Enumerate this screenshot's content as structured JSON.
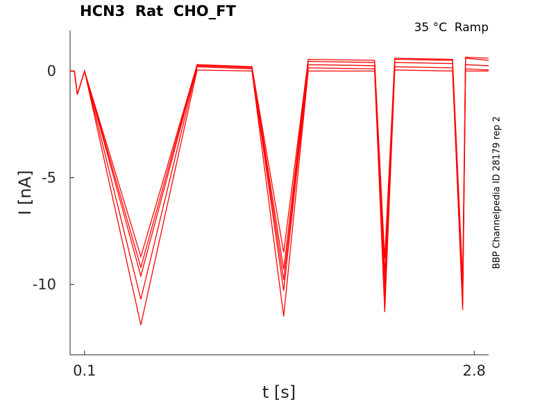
{
  "title": "HCN3  Rat  CHO_FT",
  "annotation": "35 °C  Ramp",
  "side_label": "BBP Channelpedia ID 28179 rep 2",
  "chart_data": {
    "type": "line",
    "xlabel": "t [s]",
    "ylabel": "I [nA]",
    "xlim": [
      0.0,
      2.9
    ],
    "ylim": [
      -13.3,
      1.9
    ],
    "x_ticks": [
      0.1,
      2.8
    ],
    "x_tick_labels": [
      "0.1",
      "2.8"
    ],
    "y_ticks": [
      0,
      -5,
      -10
    ],
    "y_tick_labels": [
      "0",
      "-5",
      "-10"
    ],
    "grid": false,
    "legend": "none",
    "line_color": "#ff0000",
    "series": [
      {
        "x": [
          0.0,
          0.03,
          0.05,
          0.1,
          0.49,
          0.88,
          1.26,
          1.48,
          1.65,
          2.11,
          2.18,
          2.25,
          2.65,
          2.72,
          2.74,
          2.9
        ],
        "y": [
          0.0,
          0.0,
          -1.1,
          0.0,
          -8.7,
          0.3,
          0.2,
          -8.5,
          0.55,
          0.5,
          -8.8,
          0.6,
          0.55,
          -9.8,
          0.65,
          0.6
        ]
      },
      {
        "x": [
          0.0,
          0.03,
          0.05,
          0.1,
          0.49,
          0.88,
          1.26,
          1.48,
          1.65,
          2.11,
          2.18,
          2.25,
          2.65,
          2.72,
          2.74,
          2.9
        ],
        "y": [
          0.0,
          0.0,
          -1.1,
          0.0,
          -9.2,
          0.3,
          0.2,
          -9.3,
          0.45,
          0.4,
          -9.5,
          0.55,
          0.5,
          -10.4,
          0.6,
          0.5
        ]
      },
      {
        "x": [
          0.0,
          0.03,
          0.05,
          0.1,
          0.49,
          0.88,
          1.26,
          1.48,
          1.65,
          2.11,
          2.18,
          2.25,
          2.65,
          2.72,
          2.74,
          2.9
        ],
        "y": [
          0.0,
          0.0,
          -1.1,
          0.0,
          -9.6,
          0.25,
          0.15,
          -9.8,
          0.3,
          0.25,
          -10.1,
          0.4,
          0.35,
          -10.8,
          0.3,
          0.25
        ]
      },
      {
        "x": [
          0.0,
          0.03,
          0.05,
          0.1,
          0.49,
          0.88,
          1.26,
          1.48,
          1.65,
          2.11,
          2.18,
          2.25,
          2.65,
          2.72,
          2.74,
          2.9
        ],
        "y": [
          0.0,
          0.0,
          -1.1,
          0.0,
          -10.7,
          0.2,
          0.1,
          -10.3,
          0.15,
          0.1,
          -10.7,
          0.2,
          0.15,
          -11.0,
          0.1,
          0.05
        ]
      },
      {
        "x": [
          0.0,
          0.03,
          0.05,
          0.1,
          0.49,
          0.88,
          1.26,
          1.48,
          1.65,
          2.11,
          2.18,
          2.25,
          2.65,
          2.72,
          2.74,
          2.9
        ],
        "y": [
          0.0,
          0.0,
          -1.1,
          0.0,
          -11.9,
          0.05,
          0.0,
          -11.5,
          0.0,
          0.0,
          -11.3,
          0.05,
          0.0,
          -11.2,
          0.0,
          0.0
        ]
      }
    ]
  }
}
